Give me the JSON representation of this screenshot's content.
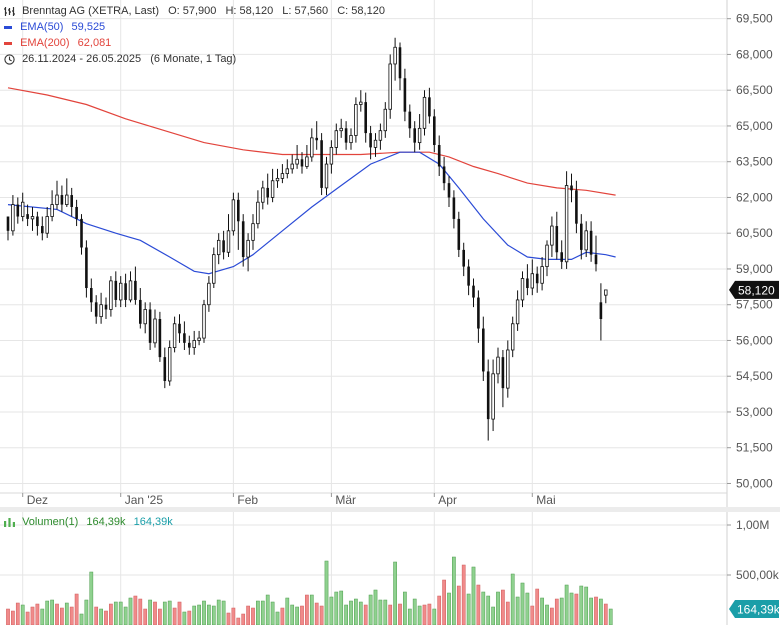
{
  "header": {
    "instrument": "Brenntag AG (XETRA, Last)",
    "o_label": "O:",
    "o_value": "57,900",
    "h_label": "H:",
    "h_value": "58,120",
    "l_label": "L:",
    "l_value": "57,560",
    "c_label": "C:",
    "c_value": "58,120",
    "ema50_label": "EMA(50)",
    "ema50_value": "59,525",
    "ema200_label": "EMA(200)",
    "ema200_value": "62,081",
    "range": "26.11.2024 - 26.05.2025",
    "range_detail": "(6 Monate, 1 Tag)"
  },
  "volume_legend": {
    "label": "Volumen(1)",
    "value1": "164,39k",
    "value2": "164,39k"
  },
  "price_tag": "58,120",
  "volume_tag": "164,39k",
  "colors": {
    "ema50": "#2b4bd6",
    "ema200": "#e2443c",
    "candle": "#111111",
    "vol_up": "#8fd18f",
    "vol_down": "#f08a8a",
    "grid": "#e6e6e6",
    "axis_text": "#555555",
    "tag_bg": "#111111",
    "vol_tag_bg": "#1a9ea8"
  },
  "chart_data": {
    "type": "candlestick",
    "price_axis": {
      "ylim": [
        49.6,
        70.2
      ],
      "ticks": [
        50,
        51.5,
        53,
        54.5,
        56,
        57.5,
        59,
        60.5,
        62,
        63.5,
        65,
        66.5,
        68,
        69.5
      ],
      "tick_labels": [
        "50,000",
        "51,500",
        "53,000",
        "54,500",
        "56,000",
        "57,500",
        "59,000",
        "60,500",
        "62,000",
        "63,500",
        "65,000",
        "66,500",
        "68,000",
        "69,500"
      ]
    },
    "volume_axis": {
      "ylim": [
        0,
        1.05
      ],
      "ticks": [
        0.5,
        1.0
      ],
      "tick_labels": [
        "500,00k",
        "1,00M"
      ]
    },
    "month_labels": [
      {
        "label": "Dez",
        "index": 3
      },
      {
        "label": "Jan '25",
        "index": 23
      },
      {
        "label": "Feb",
        "index": 46
      },
      {
        "label": "Mär",
        "index": 66
      },
      {
        "label": "Apr",
        "index": 87
      },
      {
        "label": "Mai",
        "index": 107
      }
    ],
    "candles": [
      [
        61.2,
        60.6,
        61.2,
        60.2
      ],
      [
        60.6,
        61.7,
        62.1,
        60.4
      ],
      [
        61.7,
        61.2,
        62.0,
        60.9
      ],
      [
        61.2,
        61.8,
        62.2,
        61.0
      ],
      [
        61.3,
        61.1,
        61.7,
        60.8
      ],
      [
        61.1,
        61.2,
        61.6,
        60.6
      ],
      [
        61.2,
        60.8,
        61.4,
        60.4
      ],
      [
        60.8,
        60.5,
        61.2,
        60.2
      ],
      [
        60.5,
        61.2,
        61.6,
        60.3
      ],
      [
        61.2,
        61.7,
        62.3,
        61.0
      ],
      [
        61.7,
        62.1,
        62.7,
        61.5
      ],
      [
        62.1,
        61.7,
        62.5,
        61.4
      ],
      [
        61.7,
        62.1,
        62.8,
        61.6
      ],
      [
        62.1,
        61.6,
        62.4,
        61.2
      ],
      [
        61.6,
        61.1,
        61.9,
        60.8
      ],
      [
        61.1,
        59.9,
        61.3,
        59.6
      ],
      [
        59.9,
        58.2,
        60.2,
        57.8
      ],
      [
        58.2,
        57.6,
        58.6,
        57.2
      ],
      [
        57.6,
        57.0,
        57.9,
        56.7
      ],
      [
        57.0,
        57.5,
        58.0,
        56.7
      ],
      [
        57.5,
        57.3,
        57.8,
        56.9
      ],
      [
        57.3,
        58.5,
        58.7,
        57.0
      ],
      [
        58.5,
        57.7,
        58.9,
        57.4
      ],
      [
        57.7,
        58.4,
        58.7,
        57.4
      ],
      [
        58.4,
        57.7,
        58.8,
        57.4
      ],
      [
        57.7,
        58.5,
        58.9,
        57.6
      ],
      [
        58.5,
        57.7,
        59.1,
        57.5
      ],
      [
        57.7,
        56.7,
        58.2,
        56.5
      ],
      [
        56.7,
        57.3,
        57.6,
        56.3
      ],
      [
        57.3,
        55.9,
        57.6,
        55.6
      ],
      [
        55.9,
        56.9,
        57.3,
        55.7
      ],
      [
        56.9,
        55.3,
        57.2,
        55.1
      ],
      [
        55.3,
        54.3,
        55.7,
        54.0
      ],
      [
        54.3,
        55.7,
        56.0,
        54.1
      ],
      [
        55.7,
        56.7,
        57.0,
        55.5
      ],
      [
        56.7,
        56.3,
        57.1,
        55.9
      ],
      [
        56.3,
        55.9,
        56.8,
        55.6
      ],
      [
        55.9,
        55.7,
        56.2,
        55.4
      ],
      [
        55.7,
        56.0,
        56.4,
        55.4
      ],
      [
        56.0,
        56.1,
        56.4,
        55.8
      ],
      [
        56.1,
        57.5,
        57.7,
        55.9
      ],
      [
        57.5,
        58.4,
        58.7,
        57.2
      ],
      [
        58.4,
        59.6,
        59.9,
        58.2
      ],
      [
        59.6,
        60.2,
        60.5,
        59.2
      ],
      [
        60.2,
        59.7,
        60.6,
        59.4
      ],
      [
        59.7,
        60.6,
        61.3,
        59.5
      ],
      [
        60.6,
        61.9,
        62.2,
        60.4
      ],
      [
        61.9,
        61.0,
        62.2,
        59.8
      ],
      [
        61.0,
        59.5,
        61.3,
        59.1
      ],
      [
        59.5,
        60.2,
        60.5,
        58.9
      ],
      [
        60.2,
        60.9,
        61.3,
        59.8
      ],
      [
        60.9,
        61.8,
        62.3,
        60.7
      ],
      [
        61.8,
        62.4,
        62.7,
        61.5
      ],
      [
        62.4,
        62.0,
        63.0,
        61.7
      ],
      [
        62.0,
        62.7,
        63.2,
        61.8
      ],
      [
        62.7,
        62.8,
        63.2,
        62.4
      ],
      [
        62.8,
        63.0,
        63.4,
        62.6
      ],
      [
        63.0,
        63.2,
        63.6,
        62.8
      ],
      [
        63.2,
        63.4,
        63.8,
        63.0
      ],
      [
        63.4,
        63.6,
        64.2,
        63.2
      ],
      [
        63.6,
        63.3,
        63.9,
        63.0
      ],
      [
        63.3,
        63.7,
        64.2,
        63.2
      ],
      [
        63.7,
        64.5,
        64.9,
        63.5
      ],
      [
        64.5,
        64.4,
        65.2,
        64.0
      ],
      [
        64.4,
        62.4,
        64.7,
        62.1
      ],
      [
        62.4,
        63.4,
        63.7,
        62.1
      ],
      [
        63.4,
        64.1,
        64.4,
        63.0
      ],
      [
        64.1,
        64.8,
        65.1,
        63.8
      ],
      [
        64.8,
        64.9,
        65.3,
        64.5
      ],
      [
        64.9,
        64.3,
        65.2,
        64.0
      ],
      [
        64.3,
        64.6,
        64.9,
        64.0
      ],
      [
        64.6,
        65.9,
        66.2,
        64.3
      ],
      [
        65.9,
        66.0,
        66.5,
        65.6
      ],
      [
        66.0,
        64.7,
        66.4,
        64.3
      ],
      [
        64.7,
        64.1,
        65.0,
        63.6
      ],
      [
        64.1,
        64.4,
        64.7,
        63.7
      ],
      [
        64.4,
        64.8,
        65.1,
        64.0
      ],
      [
        64.8,
        65.7,
        66.0,
        64.5
      ],
      [
        65.7,
        67.6,
        68.0,
        65.3
      ],
      [
        67.6,
        68.3,
        68.7,
        66.9
      ],
      [
        68.3,
        67.0,
        68.5,
        66.5
      ],
      [
        67.0,
        65.6,
        67.4,
        65.2
      ],
      [
        65.6,
        64.9,
        65.9,
        64.5
      ],
      [
        64.9,
        64.3,
        65.2,
        63.9
      ],
      [
        64.3,
        64.9,
        65.5,
        64.0
      ],
      [
        64.9,
        66.2,
        66.5,
        64.6
      ],
      [
        66.2,
        65.4,
        66.6,
        65.1
      ],
      [
        65.4,
        64.2,
        65.7,
        63.9
      ],
      [
        64.2,
        63.3,
        64.6,
        62.9
      ],
      [
        63.3,
        62.6,
        63.7,
        62.3
      ],
      [
        62.6,
        62.0,
        62.9,
        61.6
      ],
      [
        62.0,
        61.1,
        62.3,
        60.7
      ],
      [
        61.1,
        59.8,
        61.4,
        59.5
      ],
      [
        59.8,
        59.1,
        60.1,
        58.7
      ],
      [
        59.1,
        58.3,
        59.4,
        57.9
      ],
      [
        58.3,
        57.8,
        58.6,
        57.4
      ],
      [
        57.8,
        56.5,
        58.1,
        55.9
      ],
      [
        56.5,
        54.7,
        57.0,
        54.3
      ],
      [
        54.7,
        52.7,
        55.2,
        51.8
      ],
      [
        52.7,
        54.6,
        55.2,
        52.2
      ],
      [
        54.6,
        55.3,
        55.7,
        54.2
      ],
      [
        55.3,
        54.0,
        55.6,
        53.2
      ],
      [
        54.0,
        55.6,
        56.0,
        53.6
      ],
      [
        55.6,
        56.7,
        57.0,
        55.3
      ],
      [
        56.7,
        57.7,
        58.1,
        56.4
      ],
      [
        57.7,
        58.6,
        58.9,
        57.4
      ],
      [
        58.6,
        58.2,
        59.2,
        57.9
      ],
      [
        58.2,
        58.8,
        59.4,
        57.9
      ],
      [
        58.8,
        58.4,
        59.1,
        58.0
      ],
      [
        58.4,
        59.1,
        59.5,
        58.1
      ],
      [
        59.1,
        60.0,
        60.2,
        58.7
      ],
      [
        60.0,
        60.8,
        61.2,
        59.5
      ],
      [
        60.8,
        59.7,
        61.4,
        59.4
      ],
      [
        59.7,
        59.3,
        60.2,
        59.0
      ],
      [
        59.3,
        62.5,
        63.1,
        59.0
      ],
      [
        62.5,
        62.3,
        63.0,
        61.8
      ],
      [
        62.3,
        60.9,
        62.7,
        60.5
      ],
      [
        60.9,
        59.8,
        61.3,
        59.4
      ],
      [
        59.8,
        60.6,
        61.0,
        59.5
      ],
      [
        60.6,
        59.6,
        61.0,
        59.3
      ],
      [
        59.6,
        59.2,
        60.4,
        58.9
      ],
      [
        57.6,
        56.9,
        58.4,
        56.0
      ],
      [
        57.9,
        58.12,
        58.12,
        57.56
      ]
    ],
    "ema50": [
      [
        0,
        61.7
      ],
      [
        10,
        61.5
      ],
      [
        16,
        60.9
      ],
      [
        22,
        60.5
      ],
      [
        27,
        60.2
      ],
      [
        33,
        59.5
      ],
      [
        38,
        58.9
      ],
      [
        41,
        58.8
      ],
      [
        46,
        59.1
      ],
      [
        50,
        59.6
      ],
      [
        56,
        60.6
      ],
      [
        62,
        61.6
      ],
      [
        68,
        62.5
      ],
      [
        74,
        63.4
      ],
      [
        80,
        63.9
      ],
      [
        84,
        63.9
      ],
      [
        88,
        63.4
      ],
      [
        92,
        62.4
      ],
      [
        97,
        61.1
      ],
      [
        102,
        60.0
      ],
      [
        106,
        59.5
      ],
      [
        110,
        59.4
      ],
      [
        115,
        59.4
      ],
      [
        118,
        59.7
      ],
      [
        122,
        59.6
      ],
      [
        124,
        59.5
      ]
    ],
    "ema200": [
      [
        0,
        66.6
      ],
      [
        8,
        66.3
      ],
      [
        16,
        65.9
      ],
      [
        24,
        65.3
      ],
      [
        32,
        64.8
      ],
      [
        40,
        64.3
      ],
      [
        48,
        64.0
      ],
      [
        56,
        63.8
      ],
      [
        64,
        63.8
      ],
      [
        72,
        63.8
      ],
      [
        80,
        63.9
      ],
      [
        86,
        63.9
      ],
      [
        90,
        63.7
      ],
      [
        95,
        63.3
      ],
      [
        100,
        63.0
      ],
      [
        106,
        62.6
      ],
      [
        112,
        62.4
      ],
      [
        118,
        62.3
      ],
      [
        124,
        62.1
      ]
    ],
    "volume": [
      [
        0.16,
        0
      ],
      [
        0.14,
        0
      ],
      [
        0.22,
        0
      ],
      [
        0.2,
        1
      ],
      [
        0.13,
        0
      ],
      [
        0.18,
        0
      ],
      [
        0.21,
        0
      ],
      [
        0.16,
        1
      ],
      [
        0.24,
        1
      ],
      [
        0.25,
        1
      ],
      [
        0.21,
        0
      ],
      [
        0.17,
        0
      ],
      [
        0.22,
        1
      ],
      [
        0.18,
        0
      ],
      [
        0.31,
        0
      ],
      [
        0.11,
        1
      ],
      [
        0.25,
        1
      ],
      [
        0.53,
        1
      ],
      [
        0.18,
        0
      ],
      [
        0.16,
        1
      ],
      [
        0.14,
        0
      ],
      [
        0.21,
        0
      ],
      [
        0.23,
        1
      ],
      [
        0.23,
        1
      ],
      [
        0.18,
        1
      ],
      [
        0.27,
        1
      ],
      [
        0.29,
        0
      ],
      [
        0.26,
        0
      ],
      [
        0.16,
        0
      ],
      [
        0.25,
        1
      ],
      [
        0.23,
        0
      ],
      [
        0.16,
        0
      ],
      [
        0.23,
        1
      ],
      [
        0.24,
        1
      ],
      [
        0.17,
        0
      ],
      [
        0.23,
        0
      ],
      [
        0.13,
        1
      ],
      [
        0.14,
        0
      ],
      [
        0.19,
        1
      ],
      [
        0.2,
        1
      ],
      [
        0.24,
        1
      ],
      [
        0.2,
        1
      ],
      [
        0.19,
        1
      ],
      [
        0.25,
        1
      ],
      [
        0.24,
        1
      ],
      [
        0.12,
        0
      ],
      [
        0.17,
        0
      ],
      [
        0.07,
        0
      ],
      [
        0.11,
        0
      ],
      [
        0.19,
        0
      ],
      [
        0.17,
        0
      ],
      [
        0.24,
        1
      ],
      [
        0.24,
        1
      ],
      [
        0.3,
        1
      ],
      [
        0.23,
        1
      ],
      [
        0.13,
        1
      ],
      [
        0.17,
        0
      ],
      [
        0.27,
        1
      ],
      [
        0.2,
        1
      ],
      [
        0.18,
        1
      ],
      [
        0.19,
        0
      ],
      [
        0.3,
        0
      ],
      [
        0.3,
        1
      ],
      [
        0.22,
        0
      ],
      [
        0.19,
        0
      ],
      [
        0.64,
        1
      ],
      [
        0.28,
        1
      ],
      [
        0.33,
        1
      ],
      [
        0.34,
        1
      ],
      [
        0.2,
        1
      ],
      [
        0.24,
        1
      ],
      [
        0.26,
        1
      ],
      [
        0.23,
        1
      ],
      [
        0.2,
        0
      ],
      [
        0.3,
        1
      ],
      [
        0.35,
        1
      ],
      [
        0.25,
        1
      ],
      [
        0.25,
        1
      ],
      [
        0.2,
        0
      ],
      [
        0.63,
        1
      ],
      [
        0.21,
        0
      ],
      [
        0.33,
        1
      ],
      [
        0.16,
        1
      ],
      [
        0.26,
        1
      ],
      [
        0.19,
        1
      ],
      [
        0.2,
        0
      ],
      [
        0.21,
        0
      ],
      [
        0.16,
        1
      ],
      [
        0.29,
        0
      ],
      [
        0.45,
        0
      ],
      [
        0.32,
        1
      ],
      [
        0.68,
        1
      ],
      [
        0.39,
        0
      ],
      [
        0.6,
        0
      ],
      [
        0.31,
        1
      ],
      [
        0.58,
        1
      ],
      [
        0.4,
        0
      ],
      [
        0.33,
        1
      ],
      [
        0.29,
        1
      ],
      [
        0.18,
        1
      ],
      [
        0.33,
        1
      ],
      [
        0.35,
        0
      ],
      [
        0.23,
        0
      ],
      [
        0.51,
        1
      ],
      [
        0.28,
        1
      ],
      [
        0.42,
        1
      ],
      [
        0.32,
        1
      ],
      [
        0.19,
        0
      ],
      [
        0.36,
        0
      ],
      [
        0.27,
        1
      ],
      [
        0.2,
        1
      ],
      [
        0.17,
        0
      ],
      [
        0.26,
        0
      ],
      [
        0.27,
        1
      ],
      [
        0.4,
        1
      ],
      [
        0.32,
        1
      ],
      [
        0.31,
        0
      ],
      [
        0.39,
        1
      ],
      [
        0.38,
        1
      ],
      [
        0.27,
        1
      ],
      [
        0.28,
        0
      ],
      [
        0.26,
        1
      ],
      [
        0.21,
        0
      ],
      [
        0.16,
        1
      ]
    ]
  }
}
